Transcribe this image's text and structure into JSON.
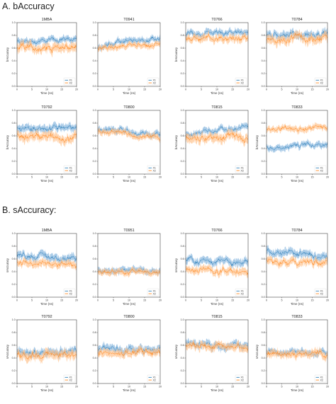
{
  "sections": [
    {
      "title": "A. bAccuracy",
      "ylabel": "bAccuracy"
    },
    {
      "title": "B. sAccuracy:",
      "ylabel": "sAccuracy"
    }
  ],
  "colors": {
    "X1": "#1f77b4",
    "X2": "#ff7f0e",
    "X1_band": "#8fbbe0",
    "X2_band": "#ffc38e"
  },
  "chart_data": [
    {
      "type": "line",
      "section": 0,
      "title": "1MBA",
      "xlabel": "Time (ns)",
      "ylabel": "bAccuracy",
      "xlim": [
        0,
        20
      ],
      "ylim": [
        0,
        1.0
      ],
      "x_ticks": [
        0,
        5,
        10,
        15,
        20
      ],
      "y_ticks": [
        0.0,
        0.2,
        0.4,
        0.6,
        0.8,
        1.0
      ],
      "legend": "lower-right",
      "series": [
        {
          "name": "X1",
          "mean": [
            [
              0,
              0.7
            ],
            [
              20,
              0.74
            ]
          ],
          "noise": 0.04
        },
        {
          "name": "X2",
          "mean": [
            [
              0,
              0.6
            ],
            [
              20,
              0.62
            ]
          ],
          "noise": 0.06
        }
      ]
    },
    {
      "type": "line",
      "section": 0,
      "title": "T0941",
      "xlabel": "Time (ns)",
      "ylabel": "",
      "xlim": [
        0,
        20
      ],
      "ylim": [
        0,
        1.0
      ],
      "x_ticks": [
        0,
        5,
        10,
        15,
        20
      ],
      "y_ticks": [
        0.0,
        0.2,
        0.4,
        0.6,
        0.8,
        1.0
      ],
      "legend": "lower-right",
      "series": [
        {
          "name": "X1",
          "mean": [
            [
              0,
              0.6
            ],
            [
              6,
              0.68
            ],
            [
              20,
              0.75
            ]
          ],
          "noise": 0.04
        },
        {
          "name": "X2",
          "mean": [
            [
              0,
              0.58
            ],
            [
              6,
              0.63
            ],
            [
              20,
              0.66
            ]
          ],
          "noise": 0.04
        }
      ]
    },
    {
      "type": "line",
      "section": 0,
      "title": "T0766",
      "xlabel": "Time (ns)",
      "ylabel": "bAccuracy",
      "xlim": [
        0,
        20
      ],
      "ylim": [
        0,
        1.0
      ],
      "x_ticks": [
        0,
        5,
        10,
        15,
        20
      ],
      "y_ticks": [
        0.0,
        0.2,
        0.4,
        0.6,
        0.8,
        1.0
      ],
      "legend": "lower-right",
      "series": [
        {
          "name": "X1",
          "mean": [
            [
              0,
              0.82
            ],
            [
              20,
              0.84
            ]
          ],
          "noise": 0.04
        },
        {
          "name": "X2",
          "mean": [
            [
              0,
              0.76
            ],
            [
              20,
              0.77
            ]
          ],
          "noise": 0.05
        }
      ]
    },
    {
      "type": "line",
      "section": 0,
      "title": "T0784",
      "xlabel": "Time (ns)",
      "ylabel": "",
      "xlim": [
        0,
        20
      ],
      "ylim": [
        0,
        1.0
      ],
      "x_ticks": [
        0,
        5,
        10,
        15,
        20
      ],
      "y_ticks": [
        0.0,
        0.2,
        0.4,
        0.6,
        0.8,
        1.0
      ],
      "legend": "lower-right",
      "series": [
        {
          "name": "X1",
          "mean": [
            [
              0,
              0.78
            ],
            [
              20,
              0.84
            ]
          ],
          "noise": 0.05
        },
        {
          "name": "X2",
          "mean": [
            [
              0,
              0.72
            ],
            [
              20,
              0.76
            ]
          ],
          "noise": 0.06
        }
      ]
    },
    {
      "type": "line",
      "section": 0,
      "title": "T0792",
      "xlabel": "Time (ns)",
      "ylabel": "bAccuracy",
      "xlim": [
        0,
        20
      ],
      "ylim": [
        0,
        1.0
      ],
      "x_ticks": [
        0,
        5,
        10,
        15,
        20
      ],
      "y_ticks": [
        0.0,
        0.2,
        0.4,
        0.6,
        0.8,
        1.0
      ],
      "legend": "lower-right",
      "series": [
        {
          "name": "X1",
          "mean": [
            [
              0,
              0.72
            ],
            [
              20,
              0.72
            ]
          ],
          "noise": 0.05
        },
        {
          "name": "X2",
          "mean": [
            [
              0,
              0.6
            ],
            [
              20,
              0.58
            ]
          ],
          "noise": 0.06
        }
      ]
    },
    {
      "type": "line",
      "section": 0,
      "title": "T0800",
      "xlabel": "Time (ns)",
      "ylabel": "",
      "xlim": [
        0,
        20
      ],
      "ylim": [
        0,
        1.0
      ],
      "x_ticks": [
        0,
        5,
        10,
        15,
        20
      ],
      "y_ticks": [
        0.0,
        0.2,
        0.4,
        0.6,
        0.8,
        1.0
      ],
      "legend": "lower-right",
      "series": [
        {
          "name": "X1",
          "mean": [
            [
              0,
              0.7
            ],
            [
              20,
              0.62
            ]
          ],
          "noise": 0.04
        },
        {
          "name": "X2",
          "mean": [
            [
              0,
              0.68
            ],
            [
              20,
              0.58
            ]
          ],
          "noise": 0.04
        }
      ]
    },
    {
      "type": "line",
      "section": 0,
      "title": "T0815",
      "xlabel": "Time (ns)",
      "ylabel": "bAccuracy",
      "xlim": [
        0,
        20
      ],
      "ylim": [
        0,
        1.0
      ],
      "x_ticks": [
        0,
        5,
        10,
        15,
        20
      ],
      "y_ticks": [
        0.0,
        0.2,
        0.4,
        0.6,
        0.8,
        1.0
      ],
      "legend": "lower-right",
      "series": [
        {
          "name": "X1",
          "mean": [
            [
              0,
              0.62
            ],
            [
              20,
              0.74
            ]
          ],
          "noise": 0.04
        },
        {
          "name": "X2",
          "mean": [
            [
              0,
              0.55
            ],
            [
              20,
              0.58
            ]
          ],
          "noise": 0.06
        }
      ]
    },
    {
      "type": "line",
      "section": 0,
      "title": "T0833",
      "xlabel": "Time (ns)",
      "ylabel": "bAccuracy",
      "xlim": [
        0,
        20
      ],
      "ylim": [
        0,
        1.0
      ],
      "x_ticks": [
        0,
        5,
        10,
        15,
        20
      ],
      "y_ticks": [
        0.0,
        0.2,
        0.4,
        0.6,
        0.8,
        1.0
      ],
      "legend": "lower-right",
      "series": [
        {
          "name": "X1",
          "mean": [
            [
              0,
              0.4
            ],
            [
              20,
              0.48
            ]
          ],
          "noise": 0.04
        },
        {
          "name": "X2",
          "mean": [
            [
              0,
              0.72
            ],
            [
              20,
              0.72
            ]
          ],
          "noise": 0.04
        }
      ]
    },
    {
      "type": "line",
      "section": 1,
      "title": "1MBA",
      "xlabel": "Time (ns)",
      "ylabel": "sAccuracy",
      "xlim": [
        0,
        20
      ],
      "ylim": [
        0,
        1.0
      ],
      "x_ticks": [
        0,
        5,
        10,
        15,
        20
      ],
      "y_ticks": [
        0.0,
        0.2,
        0.4,
        0.6,
        0.8,
        1.0
      ],
      "legend": "lower-right",
      "series": [
        {
          "name": "X1",
          "mean": [
            [
              0,
              0.66
            ],
            [
              20,
              0.6
            ]
          ],
          "noise": 0.05
        },
        {
          "name": "X2",
          "mean": [
            [
              0,
              0.55
            ],
            [
              20,
              0.52
            ]
          ],
          "noise": 0.05
        }
      ]
    },
    {
      "type": "line",
      "section": 1,
      "title": "T0951",
      "xlabel": "Time (ns)",
      "ylabel": "",
      "xlim": [
        0,
        20
      ],
      "ylim": [
        0,
        1.0
      ],
      "x_ticks": [
        0,
        5,
        10,
        15,
        20
      ],
      "y_ticks": [
        0.0,
        0.2,
        0.4,
        0.6,
        0.8,
        1.0
      ],
      "legend": "lower-right",
      "series": [
        {
          "name": "X1",
          "mean": [
            [
              0,
              0.43
            ],
            [
              20,
              0.42
            ]
          ],
          "noise": 0.04
        },
        {
          "name": "X2",
          "mean": [
            [
              0,
              0.41
            ],
            [
              20,
              0.4
            ]
          ],
          "noise": 0.04
        }
      ]
    },
    {
      "type": "line",
      "section": 1,
      "title": "T0766",
      "xlabel": "Time (ns)",
      "ylabel": "sAccuracy",
      "xlim": [
        0,
        20
      ],
      "ylim": [
        0,
        1.0
      ],
      "x_ticks": [
        0,
        5,
        10,
        15,
        20
      ],
      "y_ticks": [
        0.0,
        0.2,
        0.4,
        0.6,
        0.8,
        1.0
      ],
      "legend": "lower-right",
      "series": [
        {
          "name": "X1",
          "mean": [
            [
              0,
              0.58
            ],
            [
              20,
              0.55
            ]
          ],
          "noise": 0.05
        },
        {
          "name": "X2",
          "mean": [
            [
              0,
              0.42
            ],
            [
              20,
              0.4
            ]
          ],
          "noise": 0.05
        }
      ]
    },
    {
      "type": "line",
      "section": 1,
      "title": "T0784",
      "xlabel": "Time (ns)",
      "ylabel": "",
      "xlim": [
        0,
        20
      ],
      "ylim": [
        0,
        1.0
      ],
      "x_ticks": [
        0,
        5,
        10,
        15,
        20
      ],
      "y_ticks": [
        0.0,
        0.2,
        0.4,
        0.6,
        0.8,
        1.0
      ],
      "legend": "lower-right",
      "series": [
        {
          "name": "X1",
          "mean": [
            [
              0,
              0.72
            ],
            [
              20,
              0.62
            ]
          ],
          "noise": 0.05
        },
        {
          "name": "X2",
          "mean": [
            [
              0,
              0.55
            ],
            [
              20,
              0.55
            ]
          ],
          "noise": 0.05
        }
      ]
    },
    {
      "type": "line",
      "section": 1,
      "title": "T0792",
      "xlabel": "Time (ns)",
      "ylabel": "sAccuracy",
      "xlim": [
        0,
        20
      ],
      "ylim": [
        0,
        1.0
      ],
      "x_ticks": [
        0,
        5,
        10,
        15,
        20
      ],
      "y_ticks": [
        0.0,
        0.2,
        0.4,
        0.6,
        0.8,
        1.0
      ],
      "legend": "lower-right",
      "series": [
        {
          "name": "X1",
          "mean": [
            [
              0,
              0.5
            ],
            [
              20,
              0.5
            ]
          ],
          "noise": 0.05
        },
        {
          "name": "X2",
          "mean": [
            [
              0,
              0.45
            ],
            [
              20,
              0.45
            ]
          ],
          "noise": 0.06
        }
      ]
    },
    {
      "type": "line",
      "section": 1,
      "title": "T0800",
      "xlabel": "Time (ns)",
      "ylabel": "",
      "xlim": [
        0,
        20
      ],
      "ylim": [
        0,
        1.0
      ],
      "x_ticks": [
        0,
        5,
        10,
        15,
        20
      ],
      "y_ticks": [
        0.0,
        0.2,
        0.4,
        0.6,
        0.8,
        1.0
      ],
      "legend": "lower-right",
      "series": [
        {
          "name": "X1",
          "mean": [
            [
              0,
              0.55
            ],
            [
              20,
              0.52
            ]
          ],
          "noise": 0.05
        },
        {
          "name": "X2",
          "mean": [
            [
              0,
              0.5
            ],
            [
              20,
              0.48
            ]
          ],
          "noise": 0.05
        }
      ]
    },
    {
      "type": "line",
      "section": 1,
      "title": "T0815",
      "xlabel": "Time (ns)",
      "ylabel": "sAccuracy",
      "xlim": [
        0,
        20
      ],
      "ylim": [
        0,
        1.0
      ],
      "x_ticks": [
        0,
        5,
        10,
        15,
        20
      ],
      "y_ticks": [
        0.0,
        0.2,
        0.4,
        0.6,
        0.8,
        1.0
      ],
      "legend": "lower-right",
      "series": [
        {
          "name": "X1",
          "mean": [
            [
              0,
              0.62
            ],
            [
              20,
              0.58
            ]
          ],
          "noise": 0.05
        },
        {
          "name": "X2",
          "mean": [
            [
              0,
              0.6
            ],
            [
              20,
              0.57
            ]
          ],
          "noise": 0.05
        }
      ]
    },
    {
      "type": "line",
      "section": 1,
      "title": "T0833",
      "xlabel": "Time (ns)",
      "ylabel": "sAccuracy",
      "xlim": [
        0,
        20
      ],
      "ylim": [
        0,
        1.0
      ],
      "x_ticks": [
        0,
        5,
        10,
        15,
        20
      ],
      "y_ticks": [
        0.0,
        0.2,
        0.4,
        0.6,
        0.8,
        1.0
      ],
      "legend": "lower-right",
      "series": [
        {
          "name": "X1",
          "mean": [
            [
              0,
              0.5
            ],
            [
              20,
              0.48
            ]
          ],
          "noise": 0.04
        },
        {
          "name": "X2",
          "mean": [
            [
              0,
              0.46
            ],
            [
              20,
              0.46
            ]
          ],
          "noise": 0.05
        }
      ]
    }
  ]
}
